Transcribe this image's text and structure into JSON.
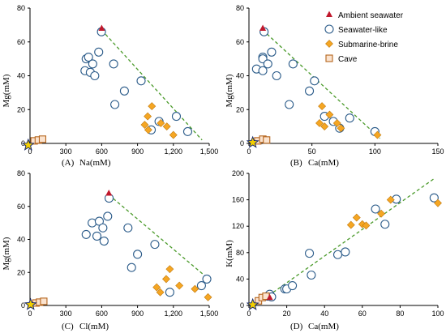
{
  "colors": {
    "ambient": "#c0182c",
    "seawater_stroke": "#2c5c8a",
    "brine_fill": "#f5a623",
    "brine_stroke": "#c07a10",
    "cave_fill": "#fbe3cf",
    "cave_stroke": "#b5651d",
    "star_fill": "#f5d000",
    "star_stroke": "#1a2a6a",
    "trend": "#4a9a2a"
  },
  "legend": {
    "items": [
      {
        "key": "ambient",
        "label": "Ambient seawater"
      },
      {
        "key": "seawater",
        "label": "Seawater-like"
      },
      {
        "key": "brine",
        "label": "Submarine-brine"
      },
      {
        "key": "cave",
        "label": "Cave"
      }
    ]
  },
  "chart_data": [
    {
      "type": "scatter",
      "panel": "(A)",
      "xlabel": "Na(mM)",
      "ylabel": "Mg(mM)",
      "xlim": [
        0,
        1500
      ],
      "ylim": [
        0,
        80
      ],
      "xticks": [
        0,
        300,
        600,
        900,
        1200,
        1500
      ],
      "xtick_labels": [
        "0",
        "300",
        "600",
        "900",
        "1,200",
        "1,500"
      ],
      "yticks": [
        0,
        20,
        40,
        60,
        80
      ],
      "trend": [
        [
          600,
          67
        ],
        [
          1440,
          2
        ]
      ],
      "series": [
        {
          "name": "Ambient seawater",
          "key": "ambient",
          "points": [
            [
              600,
              68
            ]
          ]
        },
        {
          "name": "Seawater-like",
          "key": "seawater",
          "points": [
            [
              598,
              66
            ],
            [
              470,
              50
            ],
            [
              490,
              51
            ],
            [
              525,
              47
            ],
            [
              575,
              54
            ],
            [
              460,
              43
            ],
            [
              505,
              42
            ],
            [
              542,
              40
            ],
            [
              700,
              47
            ],
            [
              790,
              31
            ],
            [
              710,
              23
            ],
            [
              930,
              37
            ],
            [
              1015,
              8
            ],
            [
              1225,
              16
            ],
            [
              1080,
              13
            ],
            [
              1320,
              7
            ]
          ]
        },
        {
          "name": "Submarine-brine",
          "key": "brine",
          "points": [
            [
              1020,
              22
            ],
            [
              1095,
              12
            ],
            [
              960,
              11
            ],
            [
              985,
              16
            ],
            [
              990,
              8
            ],
            [
              1145,
              10
            ],
            [
              1200,
              5
            ]
          ]
        },
        {
          "name": "Cave",
          "key": "cave",
          "points": [
            [
              35,
              1.5
            ],
            [
              70,
              2
            ],
            [
              105,
              2.5
            ]
          ]
        },
        {
          "key": "star",
          "points": [
            [
              -15,
              -1
            ]
          ]
        }
      ]
    },
    {
      "type": "scatter",
      "panel": "(B)",
      "xlabel": "Ca(mM)",
      "ylabel": "Mg(mM)",
      "xlim": [
        0,
        150
      ],
      "ylim": [
        0,
        80
      ],
      "xticks": [
        0,
        50,
        100,
        150
      ],
      "xtick_labels": [
        "0",
        "50",
        "100",
        "150"
      ],
      "yticks": [
        0,
        20,
        40,
        60,
        80
      ],
      "trend": [
        [
          11,
          67
        ],
        [
          104,
          3
        ]
      ],
      "series": [
        {
          "name": "Ambient seawater",
          "key": "ambient",
          "points": [
            [
              11,
              68
            ]
          ]
        },
        {
          "name": "Seawater-like",
          "key": "seawater",
          "points": [
            [
              12,
              66
            ],
            [
              11,
              51
            ],
            [
              11,
              50
            ],
            [
              15,
              47
            ],
            [
              18,
              54
            ],
            [
              6,
              44
            ],
            [
              11,
              43
            ],
            [
              22,
              40
            ],
            [
              35,
              47
            ],
            [
              48,
              31
            ],
            [
              32,
              23
            ],
            [
              52,
              37
            ],
            [
              60,
              16
            ],
            [
              80,
              15
            ],
            [
              67,
              13
            ],
            [
              72,
              9
            ],
            [
              100,
              7
            ]
          ]
        },
        {
          "name": "Submarine-brine",
          "key": "brine",
          "points": [
            [
              58,
              22
            ],
            [
              64,
              17
            ],
            [
              56,
              12
            ],
            [
              60,
              10
            ],
            [
              70,
              12
            ],
            [
              73,
              9
            ],
            [
              102,
              5
            ]
          ]
        },
        {
          "name": "Cave",
          "key": "cave",
          "points": [
            [
              7,
              1.5
            ],
            [
              11,
              2.5
            ],
            [
              14,
              2
            ]
          ]
        },
        {
          "key": "star",
          "points": [
            [
              3,
              0.5
            ]
          ]
        }
      ]
    },
    {
      "type": "scatter",
      "panel": "(C)",
      "xlabel": "Cl(mM)",
      "ylabel": "Mg(mM)",
      "xlim": [
        0,
        1500
      ],
      "ylim": [
        0,
        80
      ],
      "xticks": [
        0,
        300,
        600,
        900,
        1200,
        1500
      ],
      "xtick_labels": [
        "0",
        "300",
        "600",
        "900",
        "1,200",
        "1,500"
      ],
      "yticks": [
        0,
        20,
        40,
        60,
        80
      ],
      "trend": [
        [
          660,
          67
        ],
        [
          1480,
          17
        ]
      ],
      "series": [
        {
          "name": "Ambient seawater",
          "key": "ambient",
          "points": [
            [
              660,
              68
            ]
          ]
        },
        {
          "name": "Seawater-like",
          "key": "seawater",
          "points": [
            [
              662,
              65
            ],
            [
              520,
              50
            ],
            [
              580,
              51
            ],
            [
              610,
              47
            ],
            [
              650,
              54
            ],
            [
              470,
              43
            ],
            [
              560,
              42
            ],
            [
              620,
              39
            ],
            [
              820,
              47
            ],
            [
              850,
              23
            ],
            [
              900,
              31
            ],
            [
              1045,
              37
            ],
            [
              1170,
              8
            ],
            [
              1435,
              12
            ],
            [
              1480,
              16
            ]
          ]
        },
        {
          "name": "Submarine-brine",
          "key": "brine",
          "points": [
            [
              1170,
              22
            ],
            [
              1250,
              12
            ],
            [
              1060,
              11
            ],
            [
              1140,
              16
            ],
            [
              1090,
              8
            ],
            [
              1380,
              10
            ],
            [
              1490,
              5
            ]
          ]
        },
        {
          "name": "Cave",
          "key": "cave",
          "points": [
            [
              50,
              1.5
            ],
            [
              80,
              2
            ],
            [
              115,
              2.5
            ]
          ]
        },
        {
          "key": "star",
          "points": [
            [
              5,
              0.5
            ]
          ]
        }
      ]
    },
    {
      "type": "scatter",
      "panel": "(D)",
      "xlabel": "Ca(mM)",
      "ylabel": "K(mM)",
      "xlim": [
        0,
        100
      ],
      "ylim": [
        0,
        200
      ],
      "xticks": [
        0,
        20,
        40,
        60,
        80,
        100
      ],
      "xtick_labels": [
        "0",
        "20",
        "40",
        "60",
        "80",
        "100"
      ],
      "yticks": [
        0,
        40,
        80,
        120,
        160,
        200
      ],
      "trend": [
        [
          3,
          0
        ],
        [
          98,
          192
        ]
      ],
      "series": [
        {
          "name": "Ambient seawater",
          "key": "ambient",
          "points": [
            [
              11,
              12
            ]
          ]
        },
        {
          "name": "Seawater-like",
          "key": "seawater",
          "points": [
            [
              10,
              14
            ],
            [
              11,
              17
            ],
            [
              12,
              13
            ],
            [
              19,
              25
            ],
            [
              20,
              25
            ],
            [
              23,
              30
            ],
            [
              32,
              79
            ],
            [
              33,
              46
            ],
            [
              47,
              77
            ],
            [
              51,
              81
            ],
            [
              67,
              146
            ],
            [
              72,
              123
            ],
            [
              78,
              161
            ],
            [
              98,
              163
            ]
          ]
        },
        {
          "name": "Submarine-brine",
          "key": "brine",
          "points": [
            [
              54,
              122
            ],
            [
              57,
              133
            ],
            [
              60,
              123
            ],
            [
              62,
              121
            ],
            [
              70,
              139
            ],
            [
              75,
              160
            ],
            [
              100,
              155
            ]
          ]
        },
        {
          "name": "Cave",
          "key": "cave",
          "points": [
            [
              5,
              7
            ],
            [
              7,
              12
            ],
            [
              9,
              14
            ]
          ]
        },
        {
          "key": "star",
          "points": [
            [
              2,
              1
            ]
          ]
        }
      ]
    }
  ]
}
